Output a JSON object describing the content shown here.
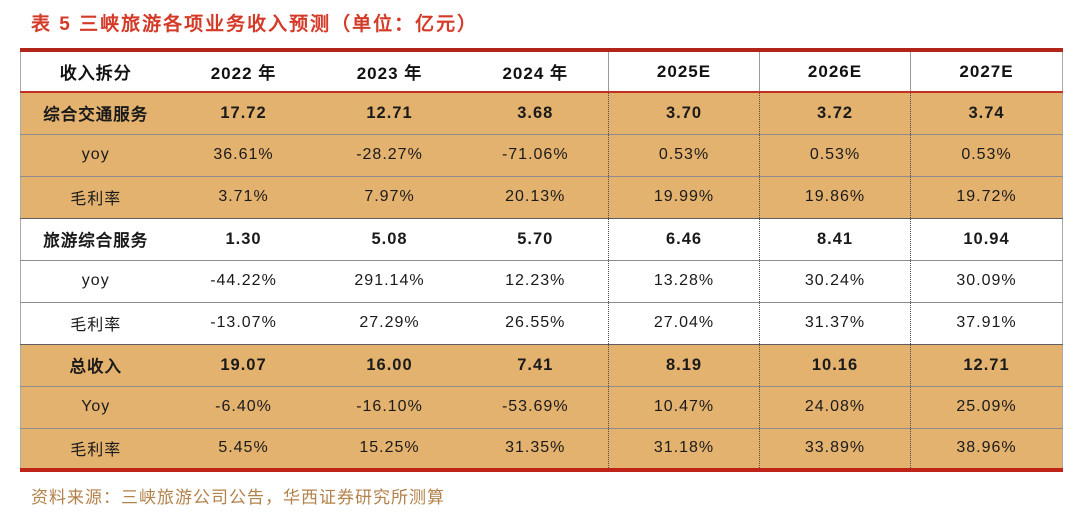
{
  "title": "表 5 三峡旅游各项业务收入预测（单位：亿元）",
  "source": "资料来源：三峡旅游公司公告，华西证券研究所测算",
  "colors": {
    "title_red": "#d43a28",
    "border_red": "#c02418",
    "shaded_row_tan": "#e4b26f",
    "source_text_tan": "#b3824a",
    "body_text": "#1a1a1a"
  },
  "chart_data": {
    "type": "table",
    "title": "表 5 三峡旅游各项业务收入预测（单位：亿元）",
    "headers": [
      "收入拆分",
      "2022 年",
      "2023 年",
      "2024 年",
      "2025E",
      "2026E",
      "2027E"
    ],
    "rows": [
      {
        "label": "综合交通服务",
        "section": true,
        "shaded": true,
        "values": [
          "17.72",
          "12.71",
          "3.68",
          "3.70",
          "3.72",
          "3.74"
        ]
      },
      {
        "label": "yoy",
        "section": false,
        "shaded": true,
        "values": [
          "36.61%",
          "-28.27%",
          "-71.06%",
          "0.53%",
          "0.53%",
          "0.53%"
        ]
      },
      {
        "label": "毛利率",
        "section": false,
        "shaded": true,
        "values": [
          "3.71%",
          "7.97%",
          "20.13%",
          "19.99%",
          "19.86%",
          "19.72%"
        ]
      },
      {
        "label": "旅游综合服务",
        "section": true,
        "shaded": false,
        "values": [
          "1.30",
          "5.08",
          "5.70",
          "6.46",
          "8.41",
          "10.94"
        ]
      },
      {
        "label": "yoy",
        "section": false,
        "shaded": false,
        "values": [
          "-44.22%",
          "291.14%",
          "12.23%",
          "13.28%",
          "30.24%",
          "30.09%"
        ]
      },
      {
        "label": "毛利率",
        "section": false,
        "shaded": false,
        "values": [
          "-13.07%",
          "27.29%",
          "26.55%",
          "27.04%",
          "31.37%",
          "37.91%"
        ]
      },
      {
        "label": "总收入",
        "section": true,
        "shaded": true,
        "values": [
          "19.07",
          "16.00",
          "7.41",
          "8.19",
          "10.16",
          "12.71"
        ]
      },
      {
        "label": "Yoy",
        "section": false,
        "shaded": true,
        "values": [
          "-6.40%",
          "-16.10%",
          "-53.69%",
          "10.47%",
          "24.08%",
          "25.09%"
        ]
      },
      {
        "label": "毛利率",
        "section": false,
        "shaded": true,
        "values": [
          "5.45%",
          "15.25%",
          "31.35%",
          "31.18%",
          "33.89%",
          "38.96%"
        ]
      }
    ]
  }
}
